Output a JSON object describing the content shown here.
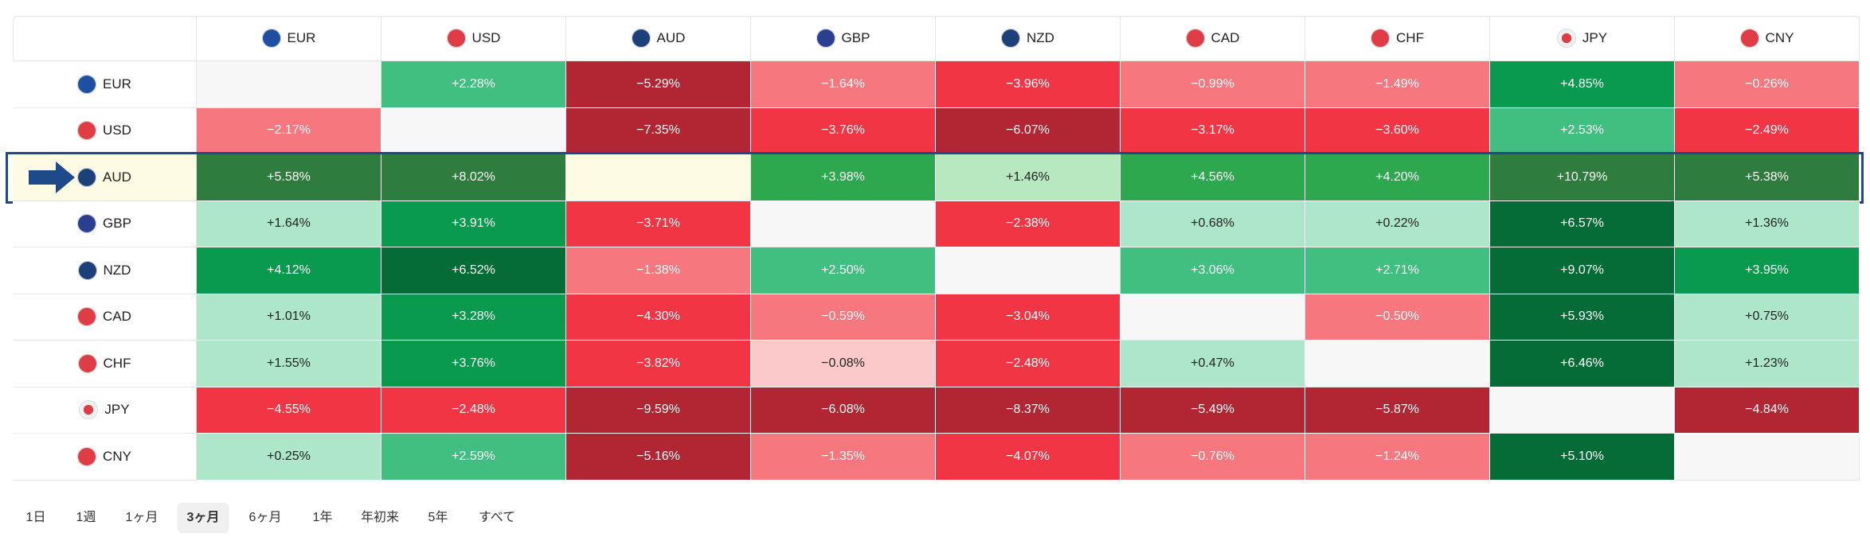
{
  "table": {
    "columns": [
      "EUR",
      "USD",
      "AUD",
      "GBP",
      "NZD",
      "CAD",
      "CHF",
      "JPY",
      "CNY"
    ],
    "highlighted_row": 2,
    "rows": [
      {
        "label": "EUR",
        "cells": [
          null,
          {
            "text": "+2.28%",
            "color": "#41bf80"
          },
          {
            "text": "−5.29%",
            "color": "#b22532"
          },
          {
            "text": "−1.64%",
            "color": "#f7777e"
          },
          {
            "text": "−3.96%",
            "color": "#f23545"
          },
          {
            "text": "−0.99%",
            "color": "#f7777e"
          },
          {
            "text": "−1.49%",
            "color": "#f7777e"
          },
          {
            "text": "+4.85%",
            "color": "#0a9a4e"
          },
          {
            "text": "−0.26%",
            "color": "#f7777e"
          }
        ]
      },
      {
        "label": "USD",
        "cells": [
          {
            "text": "−2.17%",
            "color": "#f7777e"
          },
          null,
          {
            "text": "−7.35%",
            "color": "#b22532"
          },
          {
            "text": "−3.76%",
            "color": "#f23545"
          },
          {
            "text": "−6.07%",
            "color": "#b22532"
          },
          {
            "text": "−3.17%",
            "color": "#f23545"
          },
          {
            "text": "−3.60%",
            "color": "#f23545"
          },
          {
            "text": "+2.53%",
            "color": "#41bf80"
          },
          {
            "text": "−2.49%",
            "color": "#f23545"
          }
        ]
      },
      {
        "label": "AUD",
        "cells": [
          {
            "text": "+5.58%",
            "color": "#2e7d3e"
          },
          {
            "text": "+8.02%",
            "color": "#2e7d3e"
          },
          null,
          {
            "text": "+3.98%",
            "color": "#2ea84f"
          },
          {
            "text": "+1.46%",
            "color": "#b8e8c0"
          },
          {
            "text": "+4.56%",
            "color": "#2ea84f"
          },
          {
            "text": "+4.20%",
            "color": "#2ea84f"
          },
          {
            "text": "+10.79%",
            "color": "#2e7d3e"
          },
          {
            "text": "+5.38%",
            "color": "#2e7d3e"
          }
        ]
      },
      {
        "label": "GBP",
        "cells": [
          {
            "text": "+1.64%",
            "color": "#ade6c9"
          },
          {
            "text": "+3.91%",
            "color": "#0a9a4e"
          },
          {
            "text": "−3.71%",
            "color": "#f23545"
          },
          null,
          {
            "text": "−2.38%",
            "color": "#f23545"
          },
          {
            "text": "+0.68%",
            "color": "#ade6c9"
          },
          {
            "text": "+0.22%",
            "color": "#ade6c9"
          },
          {
            "text": "+6.57%",
            "color": "#056b37"
          },
          {
            "text": "+1.36%",
            "color": "#ade6c9"
          }
        ]
      },
      {
        "label": "NZD",
        "cells": [
          {
            "text": "+4.12%",
            "color": "#0a9a4e"
          },
          {
            "text": "+6.52%",
            "color": "#056b37"
          },
          {
            "text": "−1.38%",
            "color": "#f7777e"
          },
          {
            "text": "+2.50%",
            "color": "#41bf80"
          },
          null,
          {
            "text": "+3.06%",
            "color": "#41bf80"
          },
          {
            "text": "+2.71%",
            "color": "#41bf80"
          },
          {
            "text": "+9.07%",
            "color": "#056b37"
          },
          {
            "text": "+3.95%",
            "color": "#0a9a4e"
          }
        ]
      },
      {
        "label": "CAD",
        "cells": [
          {
            "text": "+1.01%",
            "color": "#ade6c9"
          },
          {
            "text": "+3.28%",
            "color": "#0a9a4e"
          },
          {
            "text": "−4.30%",
            "color": "#f23545"
          },
          {
            "text": "−0.59%",
            "color": "#f7777e"
          },
          {
            "text": "−3.04%",
            "color": "#f23545"
          },
          null,
          {
            "text": "−0.50%",
            "color": "#f7777e"
          },
          {
            "text": "+5.93%",
            "color": "#056b37"
          },
          {
            "text": "+0.75%",
            "color": "#ade6c9"
          }
        ]
      },
      {
        "label": "CHF",
        "cells": [
          {
            "text": "+1.55%",
            "color": "#ade6c9"
          },
          {
            "text": "+3.76%",
            "color": "#0a9a4e"
          },
          {
            "text": "−3.82%",
            "color": "#f23545"
          },
          {
            "text": "−0.08%",
            "color": "#fcc9cb"
          },
          {
            "text": "−2.48%",
            "color": "#f23545"
          },
          {
            "text": "+0.47%",
            "color": "#ade6c9"
          },
          null,
          {
            "text": "+6.46%",
            "color": "#056b37"
          },
          {
            "text": "+1.23%",
            "color": "#ade6c9"
          }
        ]
      },
      {
        "label": "JPY",
        "cells": [
          {
            "text": "−4.55%",
            "color": "#f23545"
          },
          {
            "text": "−2.48%",
            "color": "#f23545"
          },
          {
            "text": "−9.59%",
            "color": "#b22532"
          },
          {
            "text": "−6.08%",
            "color": "#b22532"
          },
          {
            "text": "−8.37%",
            "color": "#b22532"
          },
          {
            "text": "−5.49%",
            "color": "#b22532"
          },
          {
            "text": "−5.87%",
            "color": "#b22532"
          },
          null,
          {
            "text": "−4.84%",
            "color": "#b22532"
          }
        ]
      },
      {
        "label": "CNY",
        "cells": [
          {
            "text": "+0.25%",
            "color": "#ade6c9"
          },
          {
            "text": "+2.59%",
            "color": "#41bf80"
          },
          {
            "text": "−5.16%",
            "color": "#b22532"
          },
          {
            "text": "−1.35%",
            "color": "#f7777e"
          },
          {
            "text": "−4.07%",
            "color": "#f23545"
          },
          {
            "text": "−0.76%",
            "color": "#f7777e"
          },
          {
            "text": "−1.24%",
            "color": "#f7777e"
          },
          {
            "text": "+5.10%",
            "color": "#056b37"
          },
          null
        ]
      }
    ]
  },
  "tabs": {
    "items": [
      "1日",
      "1週",
      "1ヶ月",
      "3ヶ月",
      "6ヶ月",
      "1年",
      "年初来",
      "5年",
      "すべて"
    ],
    "selected": 3
  }
}
